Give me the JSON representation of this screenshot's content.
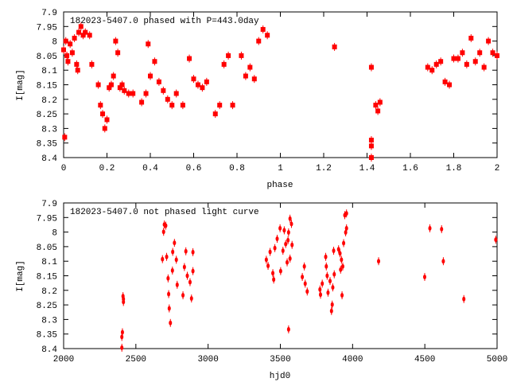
{
  "chart_data": [
    {
      "type": "scatter",
      "title": "182023-5407.0 phased with P=443.0day",
      "xlabel": "phase",
      "ylabel": "I[mag]",
      "xlim": [
        0,
        2
      ],
      "ylim": [
        8.4,
        7.9
      ],
      "y_inverted": true,
      "grid": false,
      "color": "#ff0000",
      "xticks": [
        "0",
        "0.2",
        "0.4",
        "0.6",
        "0.8",
        "1",
        "1.2",
        "1.4",
        "1.6",
        "1.8",
        "2"
      ],
      "yticks": [
        "7.9",
        "7.95",
        "8",
        "8.05",
        "8.1",
        "8.15",
        "8.2",
        "8.25",
        "8.3",
        "8.35",
        "8.4"
      ],
      "points": [
        [
          0.0,
          8.03
        ],
        [
          0.005,
          8.33
        ],
        [
          0.01,
          8.0
        ],
        [
          0.015,
          8.05
        ],
        [
          0.02,
          8.07
        ],
        [
          0.03,
          8.01
        ],
        [
          0.04,
          8.04
        ],
        [
          0.05,
          7.99
        ],
        [
          0.06,
          8.08
        ],
        [
          0.065,
          8.1
        ],
        [
          0.07,
          7.97
        ],
        [
          0.08,
          7.95
        ],
        [
          0.09,
          7.98
        ],
        [
          0.1,
          7.97
        ],
        [
          0.12,
          7.98
        ],
        [
          0.13,
          8.08
        ],
        [
          0.16,
          8.15
        ],
        [
          0.17,
          8.22
        ],
        [
          0.18,
          8.25
        ],
        [
          0.19,
          8.3
        ],
        [
          0.2,
          8.27
        ],
        [
          0.21,
          8.16
        ],
        [
          0.22,
          8.15
        ],
        [
          0.23,
          8.12
        ],
        [
          0.24,
          8.0
        ],
        [
          0.25,
          8.04
        ],
        [
          0.26,
          8.16
        ],
        [
          0.27,
          8.15
        ],
        [
          0.28,
          8.17
        ],
        [
          0.3,
          8.18
        ],
        [
          0.32,
          8.18
        ],
        [
          0.36,
          8.21
        ],
        [
          0.38,
          8.18
        ],
        [
          0.39,
          8.01
        ],
        [
          0.4,
          8.12
        ],
        [
          0.42,
          8.07
        ],
        [
          0.44,
          8.14
        ],
        [
          0.46,
          8.17
        ],
        [
          0.48,
          8.2
        ],
        [
          0.5,
          8.22
        ],
        [
          0.52,
          8.18
        ],
        [
          0.55,
          8.22
        ],
        [
          0.58,
          8.06
        ],
        [
          0.6,
          8.13
        ],
        [
          0.62,
          8.15
        ],
        [
          0.64,
          8.16
        ],
        [
          0.66,
          8.14
        ],
        [
          0.7,
          8.25
        ],
        [
          0.72,
          8.22
        ],
        [
          0.74,
          8.08
        ],
        [
          0.76,
          8.05
        ],
        [
          0.78,
          8.22
        ],
        [
          0.82,
          8.05
        ],
        [
          0.84,
          8.12
        ],
        [
          0.86,
          8.09
        ],
        [
          0.88,
          8.13
        ],
        [
          0.9,
          8.0
        ],
        [
          0.92,
          7.96
        ],
        [
          0.94,
          7.98
        ],
        [
          1.25,
          8.02
        ],
        [
          1.42,
          8.09
        ],
        [
          1.42,
          8.34
        ],
        [
          1.42,
          8.36
        ],
        [
          1.42,
          8.4
        ],
        [
          1.44,
          8.22
        ],
        [
          1.45,
          8.24
        ],
        [
          1.46,
          8.21
        ],
        [
          1.68,
          8.09
        ],
        [
          1.7,
          8.1
        ],
        [
          1.72,
          8.08
        ],
        [
          1.74,
          8.07
        ],
        [
          1.76,
          8.14
        ],
        [
          1.78,
          8.15
        ],
        [
          1.8,
          8.06
        ],
        [
          1.82,
          8.06
        ],
        [
          1.84,
          8.04
        ],
        [
          1.86,
          8.08
        ],
        [
          1.88,
          7.99
        ],
        [
          1.9,
          8.07
        ],
        [
          1.92,
          8.04
        ],
        [
          1.94,
          8.09
        ],
        [
          1.96,
          8.0
        ],
        [
          1.98,
          8.04
        ],
        [
          2.0,
          8.05
        ]
      ]
    },
    {
      "type": "scatter",
      "title": "182023-5407.0 not phased light curve",
      "xlabel": "hjd0",
      "ylabel": "I[mag]",
      "xlim": [
        2000,
        5000
      ],
      "ylim": [
        8.4,
        7.9
      ],
      "y_inverted": true,
      "grid": false,
      "color": "#ff0000",
      "xticks": [
        "2000",
        "2500",
        "3000",
        "3500",
        "4000",
        "4500",
        "5000"
      ],
      "yticks": [
        "7.9",
        "7.95",
        "8",
        "8.05",
        "8.1",
        "8.15",
        "8.2",
        "8.25",
        "8.3",
        "8.35",
        "8.4"
      ],
      "points": [
        [
          2411,
          8.22
        ],
        [
          2407,
          8.344
        ],
        [
          2403,
          8.36
        ],
        [
          2403,
          8.397
        ],
        [
          2414,
          8.23
        ],
        [
          2414,
          8.24
        ],
        [
          2697,
          7.974
        ],
        [
          2692,
          7.999
        ],
        [
          2707,
          7.978
        ],
        [
          2684,
          8.093
        ],
        [
          2713,
          8.085
        ],
        [
          2723,
          8.159
        ],
        [
          2727,
          8.213
        ],
        [
          2731,
          8.262
        ],
        [
          2739,
          8.312
        ],
        [
          2755,
          8.068
        ],
        [
          2767,
          8.037
        ],
        [
          2780,
          8.095
        ],
        [
          2753,
          8.132
        ],
        [
          2786,
          8.181
        ],
        [
          2826,
          8.217
        ],
        [
          2836,
          8.12
        ],
        [
          2846,
          8.066
        ],
        [
          2856,
          8.15
        ],
        [
          2875,
          8.172
        ],
        [
          2885,
          8.228
        ],
        [
          2895,
          8.069
        ],
        [
          2895,
          8.134
        ],
        [
          3403,
          8.095
        ],
        [
          3415,
          8.116
        ],
        [
          3429,
          8.068
        ],
        [
          3448,
          8.141
        ],
        [
          3454,
          8.163
        ],
        [
          3462,
          8.055
        ],
        [
          3478,
          8.023
        ],
        [
          3498,
          7.987
        ],
        [
          3502,
          8.134
        ],
        [
          3518,
          8.064
        ],
        [
          3527,
          7.994
        ],
        [
          3537,
          8.041
        ],
        [
          3547,
          8.104
        ],
        [
          3557,
          8.334
        ],
        [
          3557,
          8.001
        ],
        [
          3567,
          7.954
        ],
        [
          3577,
          7.972
        ],
        [
          3581,
          8.044
        ],
        [
          3553,
          8.028
        ],
        [
          3567,
          8.091
        ],
        [
          3652,
          8.154
        ],
        [
          3666,
          8.118
        ],
        [
          3672,
          8.177
        ],
        [
          3686,
          8.204
        ],
        [
          3774,
          8.197
        ],
        [
          3778,
          8.215
        ],
        [
          3790,
          8.177
        ],
        [
          3814,
          8.085
        ],
        [
          3818,
          8.118
        ],
        [
          3824,
          8.15
        ],
        [
          3830,
          8.208
        ],
        [
          3844,
          8.168
        ],
        [
          3854,
          8.271
        ],
        [
          3859,
          8.249
        ],
        [
          3863,
          8.19
        ],
        [
          3869,
          8.064
        ],
        [
          3873,
          8.145
        ],
        [
          3903,
          8.059
        ],
        [
          3913,
          8.073
        ],
        [
          3917,
          8.129
        ],
        [
          3923,
          8.095
        ],
        [
          3927,
          8.217
        ],
        [
          3932,
          8.118
        ],
        [
          3938,
          8.038
        ],
        [
          3946,
          7.942
        ],
        [
          3952,
          8.001
        ],
        [
          3958,
          7.987
        ],
        [
          3958,
          7.936
        ],
        [
          4180,
          8.1
        ],
        [
          4499,
          8.154
        ],
        [
          4535,
          7.987
        ],
        [
          4616,
          7.99
        ],
        [
          4628,
          8.1
        ],
        [
          4770,
          8.23
        ],
        [
          4991,
          8.026
        ]
      ]
    }
  ]
}
